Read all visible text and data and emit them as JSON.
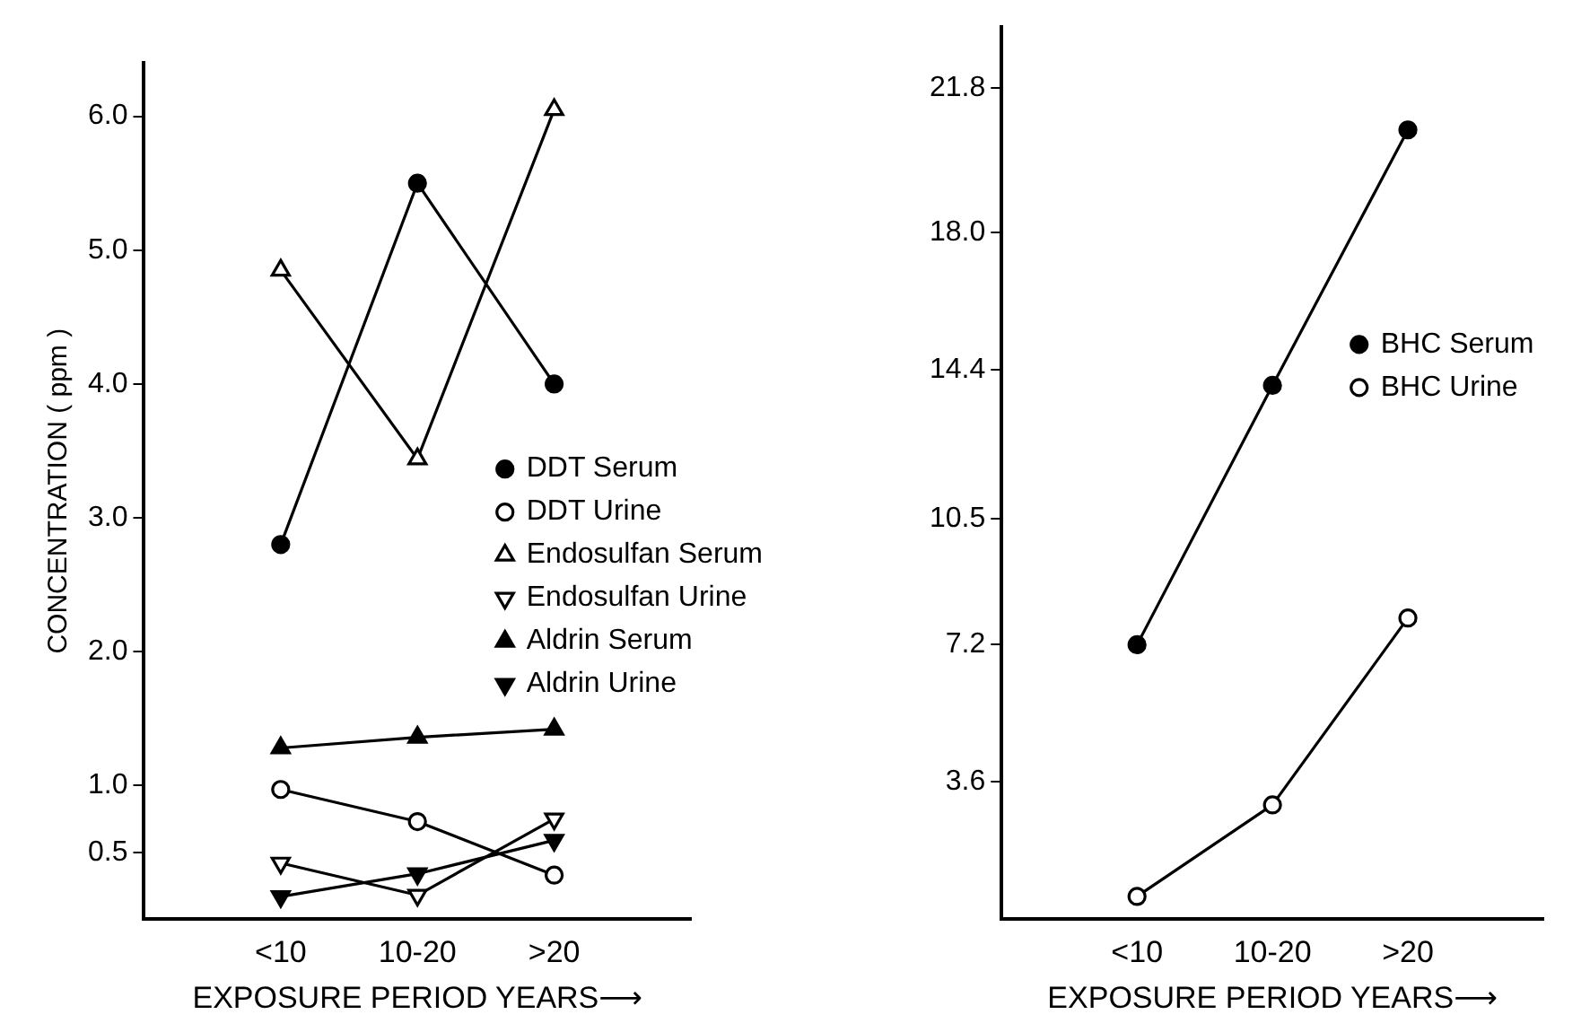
{
  "chart_data": [
    {
      "type": "line",
      "ylabel": "CONCENTRATION ( ppm )",
      "xlabel": "EXPOSURE PERIOD YEARS⟶",
      "categories": [
        "<10",
        "10-20",
        ">20"
      ],
      "ylim": [
        0,
        6.4
      ],
      "yticks": [
        {
          "value": 0.5,
          "label": "0.5"
        },
        {
          "value": 1,
          "label": "1.0"
        },
        {
          "value": 2,
          "label": "2.0"
        },
        {
          "value": 3,
          "label": "3.0"
        },
        {
          "value": 4,
          "label": "4.0"
        },
        {
          "value": 5,
          "label": "5.0"
        },
        {
          "value": 6,
          "label": "6.0"
        }
      ],
      "grid": false,
      "legend": "bottom right",
      "series": [
        {
          "name": "DDT Serum",
          "color": "#000000",
          "marker": "circle",
          "values": [
            2.8,
            5.5,
            4.0
          ]
        },
        {
          "name": "DDT Urine",
          "color": "#ffffff",
          "marker": "circle",
          "values": [
            0.97,
            0.73,
            0.33
          ]
        },
        {
          "name": "Endosulfan Serum",
          "color": "#ffffff",
          "marker": "triangle",
          "values": [
            4.85,
            3.44,
            6.05
          ]
        },
        {
          "name": "Endosulfan Urine",
          "color": "#ffffff",
          "marker": "triangle-down",
          "values": [
            0.42,
            0.18,
            0.75
          ]
        },
        {
          "name": "Aldrin Serum",
          "color": "#000000",
          "marker": "triangle",
          "values": [
            1.28,
            1.36,
            1.42
          ]
        },
        {
          "name": "Aldrin Urine",
          "color": "#000000",
          "marker": "triangle-down",
          "values": [
            0.17,
            0.34,
            0.59
          ]
        }
      ]
    },
    {
      "type": "line",
      "xlabel": "EXPOSURE PERIOD YEARS⟶",
      "categories": [
        "<10",
        "10-20",
        ">20"
      ],
      "ylim": [
        0,
        23.4
      ],
      "yticks": [
        {
          "value": 3.6,
          "label": "3.6"
        },
        {
          "value": 7.2,
          "label": "7.2"
        },
        {
          "value": 10.5,
          "label": "10.5"
        },
        {
          "value": 14.4,
          "label": "14.4"
        },
        {
          "value": 18,
          "label": "18.0"
        },
        {
          "value": 21.8,
          "label": "21.8"
        }
      ],
      "grid": false,
      "legend": "right",
      "series": [
        {
          "name": "BHC Serum",
          "color": "#000000",
          "marker": "circle",
          "values": [
            7.2,
            14.0,
            20.7
          ]
        },
        {
          "name": "BHC Urine",
          "color": "#ffffff",
          "marker": "circle",
          "values": [
            0.6,
            3.0,
            7.9
          ]
        }
      ]
    }
  ]
}
